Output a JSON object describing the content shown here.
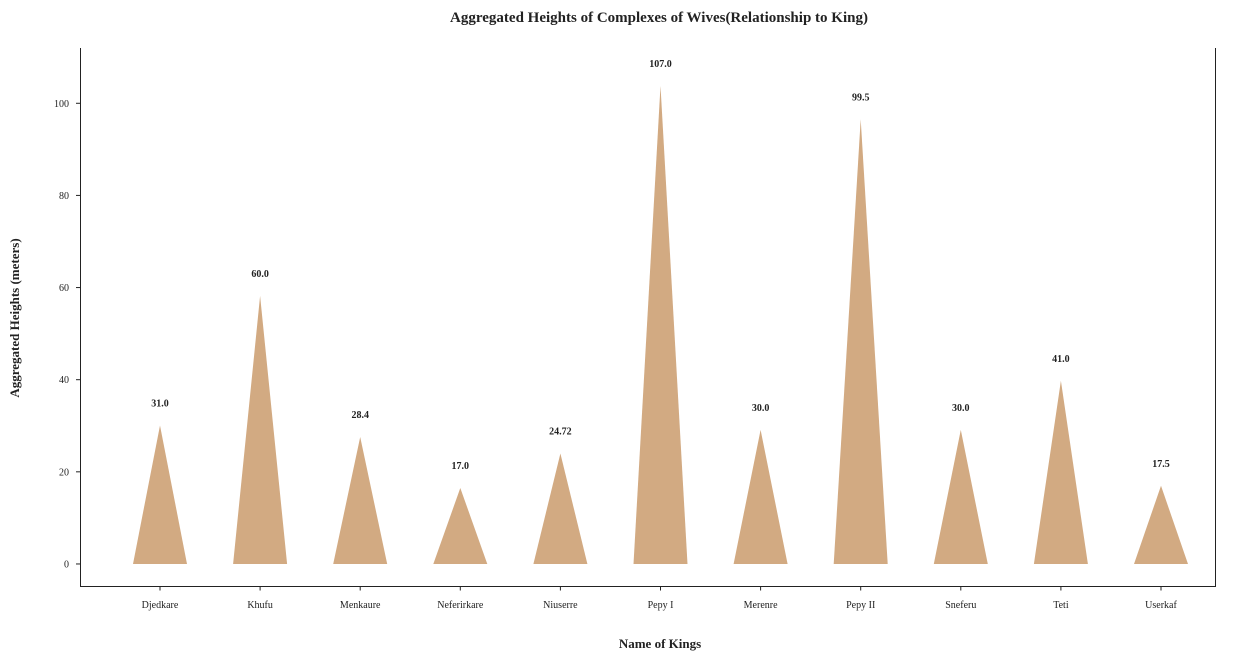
{
  "chart_data": {
    "type": "bar",
    "title": "Aggregated Heights of Complexes of Wives(Relationship to King)",
    "xlabel": "Name of Kings",
    "ylabel": "Aggregated Heights (meters)",
    "categories": [
      "Djedkare",
      "Khufu",
      "Menkaure",
      "Neferirkare",
      "Niuserre",
      "Pepy I",
      "Merenre",
      "Pepy II",
      "Sneferu",
      "Teti",
      "Userkaf"
    ],
    "values": [
      31.0,
      60.0,
      28.4,
      17.0,
      24.72,
      107.0,
      30.0,
      99.5,
      30.0,
      41.0,
      17.5
    ],
    "value_labels": [
      "31.0",
      "60.0",
      "28.4",
      "17.0",
      "24.72",
      "107.0",
      "30.0",
      "99.5",
      "30.0",
      "41.0",
      "17.5"
    ],
    "yticks": [
      0,
      20,
      40,
      60,
      80,
      100
    ],
    "ylim": [
      -5,
      112
    ],
    "bar_shape": "triangle",
    "bar_color": "#d2aa82",
    "grid": false,
    "legend": "none"
  }
}
